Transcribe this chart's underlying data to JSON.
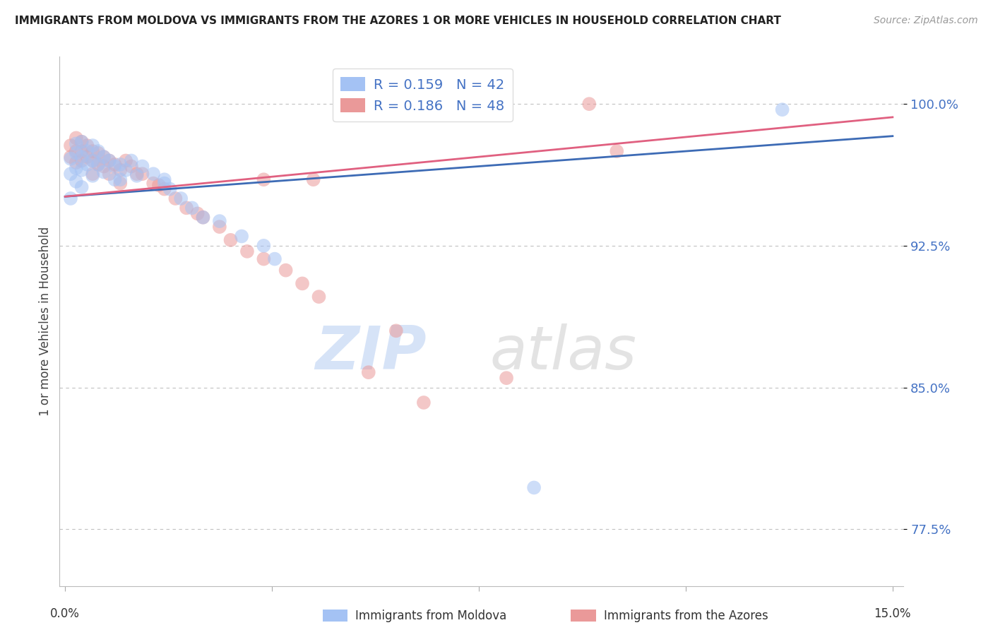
{
  "title": "IMMIGRANTS FROM MOLDOVA VS IMMIGRANTS FROM THE AZORES 1 OR MORE VEHICLES IN HOUSEHOLD CORRELATION CHART",
  "source": "Source: ZipAtlas.com",
  "ylabel": "1 or more Vehicles in Household",
  "ymin": 0.745,
  "ymax": 1.025,
  "xmin": -0.001,
  "xmax": 0.152,
  "r_blue": 0.159,
  "n_blue": 42,
  "r_pink": 0.186,
  "n_pink": 48,
  "color_blue": "#a4c2f4",
  "color_pink": "#ea9999",
  "color_blue_line": "#3d6bb5",
  "color_pink_line": "#e06080",
  "legend_label_blue": "Immigrants from Moldova",
  "legend_label_pink": "Immigrants from the Azores",
  "watermark_zip": "ZIP",
  "watermark_atlas": "atlas",
  "ytick_positions": [
    0.775,
    0.85,
    0.925,
    1.0
  ],
  "ytick_labels": [
    "77.5%",
    "85.0%",
    "92.5%",
    "100.0%"
  ],
  "blue_scatter": [
    [
      0.001,
      0.971
    ],
    [
      0.001,
      0.963
    ],
    [
      0.002,
      0.979
    ],
    [
      0.002,
      0.966
    ],
    [
      0.002,
      0.959
    ],
    [
      0.003,
      0.98
    ],
    [
      0.003,
      0.972
    ],
    [
      0.003,
      0.965
    ],
    [
      0.004,
      0.975
    ],
    [
      0.004,
      0.968
    ],
    [
      0.005,
      0.978
    ],
    [
      0.005,
      0.97
    ],
    [
      0.005,
      0.962
    ],
    [
      0.006,
      0.975
    ],
    [
      0.006,
      0.968
    ],
    [
      0.007,
      0.972
    ],
    [
      0.007,
      0.964
    ],
    [
      0.008,
      0.97
    ],
    [
      0.009,
      0.967
    ],
    [
      0.009,
      0.96
    ],
    [
      0.01,
      0.968
    ],
    [
      0.01,
      0.96
    ],
    [
      0.011,
      0.965
    ],
    [
      0.012,
      0.97
    ],
    [
      0.013,
      0.962
    ],
    [
      0.014,
      0.967
    ],
    [
      0.016,
      0.963
    ],
    [
      0.018,
      0.958
    ],
    [
      0.019,
      0.955
    ],
    [
      0.021,
      0.95
    ],
    [
      0.023,
      0.945
    ],
    [
      0.025,
      0.94
    ],
    [
      0.028,
      0.938
    ],
    [
      0.032,
      0.93
    ],
    [
      0.036,
      0.925
    ],
    [
      0.038,
      0.918
    ],
    [
      0.001,
      0.95
    ],
    [
      0.003,
      0.956
    ],
    [
      0.002,
      0.974
    ],
    [
      0.018,
      0.96
    ],
    [
      0.13,
      0.997
    ],
    [
      0.085,
      0.797
    ]
  ],
  "pink_scatter": [
    [
      0.001,
      0.978
    ],
    [
      0.001,
      0.972
    ],
    [
      0.002,
      0.982
    ],
    [
      0.002,
      0.975
    ],
    [
      0.002,
      0.969
    ],
    [
      0.003,
      0.98
    ],
    [
      0.003,
      0.975
    ],
    [
      0.003,
      0.97
    ],
    [
      0.004,
      0.978
    ],
    [
      0.004,
      0.972
    ],
    [
      0.005,
      0.975
    ],
    [
      0.005,
      0.97
    ],
    [
      0.005,
      0.963
    ],
    [
      0.006,
      0.974
    ],
    [
      0.006,
      0.968
    ],
    [
      0.007,
      0.972
    ],
    [
      0.007,
      0.967
    ],
    [
      0.008,
      0.97
    ],
    [
      0.008,
      0.963
    ],
    [
      0.009,
      0.968
    ],
    [
      0.01,
      0.965
    ],
    [
      0.011,
      0.97
    ],
    [
      0.012,
      0.967
    ],
    [
      0.014,
      0.963
    ],
    [
      0.016,
      0.958
    ],
    [
      0.018,
      0.955
    ],
    [
      0.02,
      0.95
    ],
    [
      0.022,
      0.945
    ],
    [
      0.025,
      0.94
    ],
    [
      0.028,
      0.935
    ],
    [
      0.03,
      0.928
    ],
    [
      0.033,
      0.922
    ],
    [
      0.036,
      0.918
    ],
    [
      0.04,
      0.912
    ],
    [
      0.043,
      0.905
    ],
    [
      0.046,
      0.898
    ],
    [
      0.013,
      0.963
    ],
    [
      0.017,
      0.957
    ],
    [
      0.024,
      0.942
    ],
    [
      0.036,
      0.96
    ],
    [
      0.045,
      0.96
    ],
    [
      0.06,
      0.88
    ],
    [
      0.055,
      0.858
    ],
    [
      0.065,
      0.842
    ],
    [
      0.08,
      0.855
    ],
    [
      0.095,
      1.0
    ],
    [
      0.1,
      0.975
    ],
    [
      0.01,
      0.958
    ]
  ],
  "blue_line_x": [
    0.0,
    0.15
  ],
  "blue_line_y": [
    0.951,
    0.983
  ],
  "pink_line_x": [
    0.0,
    0.15
  ],
  "pink_line_y": [
    0.951,
    0.993
  ]
}
